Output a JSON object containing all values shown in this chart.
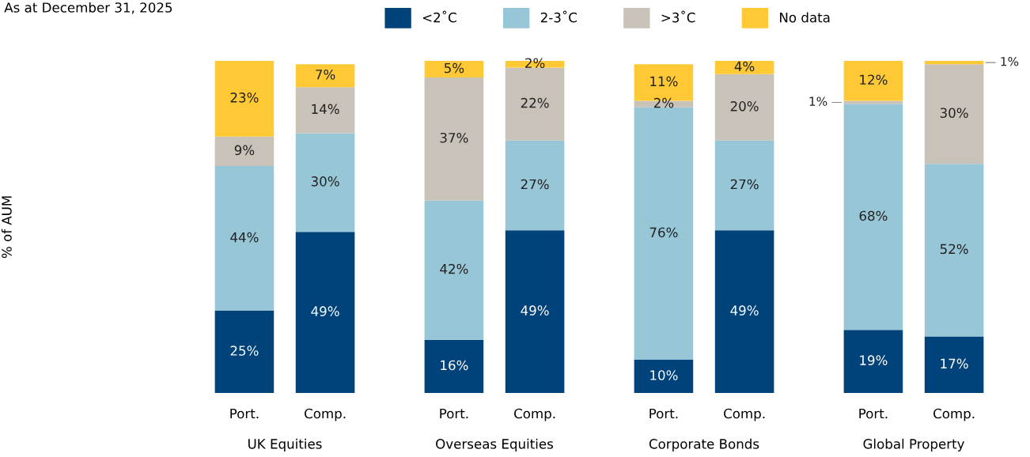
{
  "chart_data": [
    {
      "type": "bar",
      "stacked": true,
      "subtitle": "As at December 31, 2025",
      "ylabel": "% of AUM",
      "xlabel": "UK Equities",
      "categories": [
        "Port.",
        "Comp."
      ],
      "legend": "top",
      "tick_labels": "x",
      "series": [
        {
          "name": "<2˚C",
          "color": "#00437a",
          "values": [
            25,
            49
          ],
          "value_labels": [
            "25%",
            "49%"
          ]
        },
        {
          "name": "2-3˚C",
          "color": "#97c6d6",
          "values": [
            44,
            30
          ],
          "value_labels": [
            "44%",
            "30%"
          ]
        },
        {
          "name": ">3˚C",
          "color": "#c9c2b8",
          "values": [
            9,
            14
          ],
          "value_labels": [
            "9%",
            "14%"
          ]
        },
        {
          "name": "No data",
          "color": "#ffc935",
          "values": [
            23,
            7
          ],
          "value_labels": [
            "23%",
            "7%"
          ]
        }
      ]
    },
    {
      "type": "bar",
      "stacked": true,
      "xlabel": "Overseas Equities",
      "categories": [
        "Port.",
        "Comp."
      ],
      "tick_labels": "x",
      "series": [
        {
          "color": "#00437a",
          "values": [
            16,
            49
          ],
          "value_labels": [
            "16%",
            "49%"
          ]
        },
        {
          "color": "#97c6d6",
          "values": [
            42,
            27
          ],
          "value_labels": [
            "42%",
            "27%"
          ]
        },
        {
          "color": "#c9c2b8",
          "values": [
            37,
            22
          ],
          "value_labels": [
            "37%",
            "22%"
          ]
        },
        {
          "color": "#ffc935",
          "values": [
            5,
            2
          ],
          "value_labels": [
            "5%",
            "2%"
          ]
        }
      ]
    },
    {
      "type": "bar",
      "stacked": true,
      "xlabel": "Corporate Bonds",
      "categories": [
        "Port.",
        "Comp."
      ],
      "tick_labels": "x",
      "series": [
        {
          "color": "#00437a",
          "values": [
            10,
            49
          ],
          "value_labels": [
            "10%",
            "49%"
          ]
        },
        {
          "color": "#97c6d6",
          "values": [
            76,
            27
          ],
          "value_labels": [
            "76%",
            "27%"
          ]
        },
        {
          "color": "#c9c2b8",
          "values": [
            2,
            20
          ],
          "value_labels": [
            "2%",
            "20%"
          ]
        },
        {
          "color": "#ffc935",
          "values": [
            11,
            4
          ],
          "value_labels": [
            "11%",
            "4%"
          ]
        }
      ]
    },
    {
      "type": "bar",
      "stacked": true,
      "xlabel": "Global Property",
      "categories": [
        "Port.",
        "Comp."
      ],
      "tick_labels": "x",
      "series": [
        {
          "color": "#00437a",
          "values": [
            19,
            17
          ],
          "value_labels": [
            "19%",
            "17%"
          ]
        },
        {
          "color": "#97c6d6",
          "values": [
            68,
            52
          ],
          "value_labels": [
            "68%",
            "52%"
          ]
        },
        {
          "color": "#c9c2b8",
          "values": [
            1,
            30
          ],
          "value_labels": [
            "1%",
            "30%"
          ]
        },
        {
          "color": "#ffc935",
          "values": [
            12,
            1
          ],
          "value_labels": [
            "12%",
            "1%"
          ]
        }
      ]
    }
  ]
}
